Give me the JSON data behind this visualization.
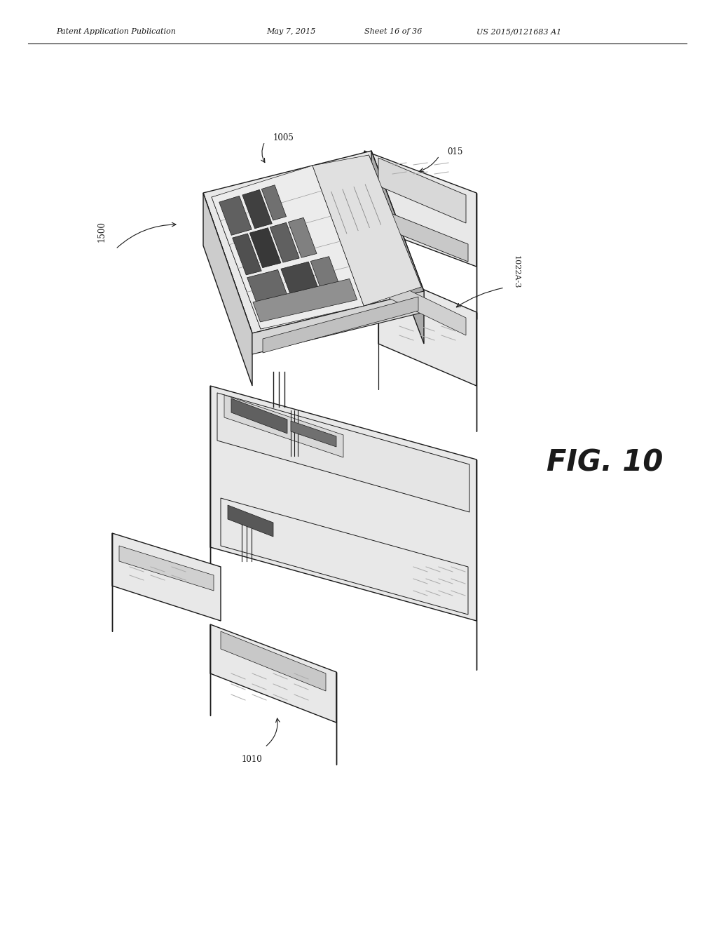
{
  "background_color": "#ffffff",
  "header_text": "Patent Application Publication",
  "header_date": "May 7, 2015",
  "header_sheet": "Sheet 16 of 36",
  "header_patent": "US 2015/0121683 A1",
  "fig_label": "FIG. 10",
  "label_1500": "1500",
  "label_1005": "1005",
  "label_015": "015",
  "label_1022A3": "1022A-3",
  "label_1010": "1010"
}
